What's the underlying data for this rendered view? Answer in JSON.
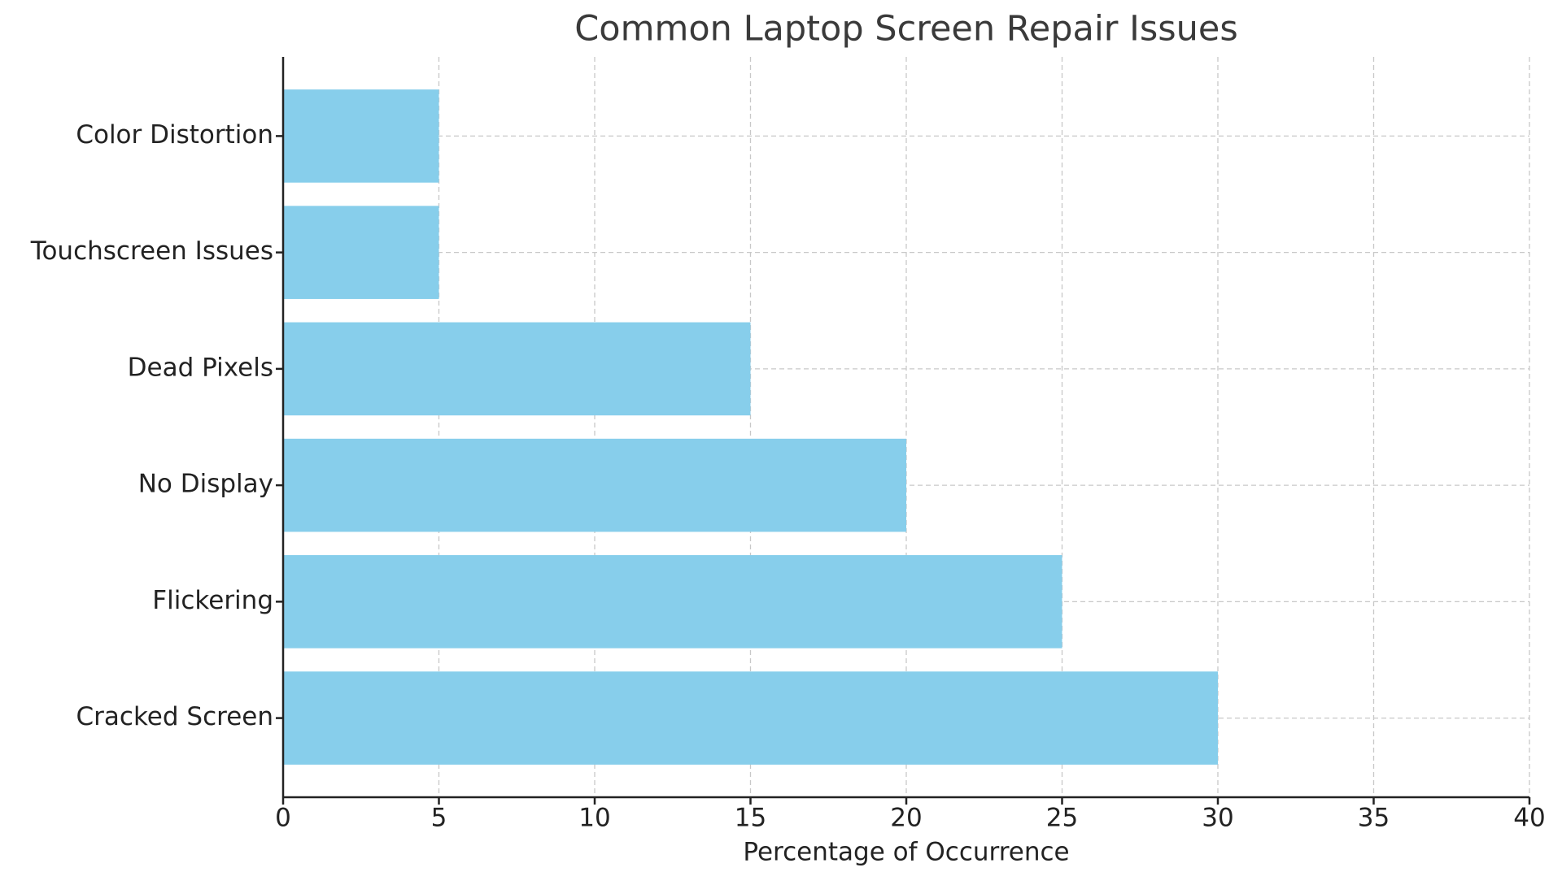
{
  "chart_data": {
    "type": "barh",
    "title": "Common Laptop Screen Repair Issues",
    "xlabel": "Percentage of Occurrence",
    "categories": [
      "Cracked Screen",
      "Flickering",
      "No Display",
      "Dead Pixels",
      "Touchscreen Issues",
      "Color Distortion"
    ],
    "values": [
      30,
      25,
      20,
      15,
      5,
      5
    ],
    "color": "#87ceeb",
    "xlim": [
      0,
      40
    ],
    "xticks": [
      0,
      5,
      10,
      15,
      20,
      25,
      30,
      35,
      40
    ],
    "grid": true
  }
}
